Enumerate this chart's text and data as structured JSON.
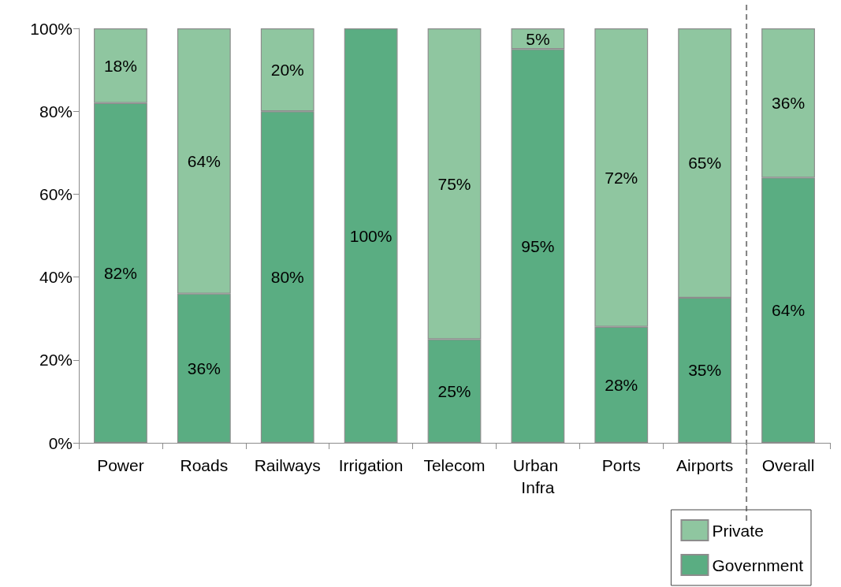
{
  "chart_data": {
    "type": "bar",
    "stacked": true,
    "categories": [
      "Power",
      "Roads",
      "Railways",
      "Irrigation",
      "Telecom",
      "Urban Infra",
      "Ports",
      "Airports",
      "Overall"
    ],
    "series": [
      {
        "name": "Government",
        "color": "#5aad82",
        "values": [
          82,
          36,
          80,
          100,
          25,
          95,
          28,
          35,
          64
        ],
        "value_labels": [
          "82%",
          "36%",
          "80%",
          "100%",
          "25%",
          "95%",
          "28%",
          "35%",
          "64%"
        ]
      },
      {
        "name": "Private",
        "color": "#8fc6a0",
        "values": [
          18,
          64,
          20,
          null,
          75,
          5,
          72,
          65,
          36
        ],
        "value_labels": [
          "18%",
          "64%",
          "20%",
          null,
          "75%",
          "5%",
          "72%",
          "65%",
          "36%"
        ]
      }
    ],
    "ylim": [
      0,
      100
    ],
    "yticks": [
      {
        "value": 0,
        "label": "0%"
      },
      {
        "value": 20,
        "label": "20%"
      },
      {
        "value": 40,
        "label": "40%"
      },
      {
        "value": 60,
        "label": "60%"
      },
      {
        "value": 80,
        "label": "80%"
      },
      {
        "value": 100,
        "label": "100%"
      }
    ],
    "grid": false,
    "legend": "bottom right"
  }
}
